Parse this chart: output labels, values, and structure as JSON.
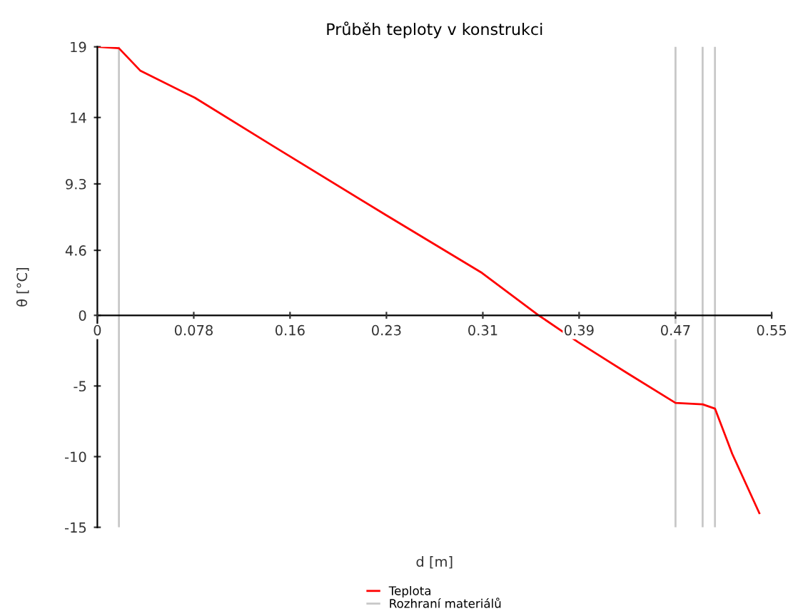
{
  "chart_data": {
    "type": "line",
    "title": "Průběh teploty v konstrukci",
    "xlabel": "d [m]",
    "ylabel": "θ [°C]",
    "series": [
      {
        "name": "Teplota",
        "color": "#ff0000",
        "x": [
          0,
          0.0175,
          0.035,
          0.079,
          0.144,
          0.234,
          0.312,
          0.358,
          0.39,
          0.43,
          0.469,
          0.491,
          0.501,
          0.515,
          0.537
        ],
        "values": [
          19,
          18.9,
          17.3,
          15.4,
          11.9,
          7.1,
          3.0,
          0,
          -1.9,
          -4.1,
          -6.2,
          -6.3,
          -6.6,
          -9.8,
          -14
        ]
      }
    ],
    "ref_lines": [
      {
        "axis": "x",
        "value": 0.0175,
        "label": "Rozhraní materiálů",
        "color": "#c8c8c8"
      },
      {
        "axis": "x",
        "value": 0.469,
        "color": "#c8c8c8"
      },
      {
        "axis": "x",
        "value": 0.491,
        "color": "#c8c8c8"
      },
      {
        "axis": "x",
        "value": 0.501,
        "color": "#c8c8c8"
      }
    ],
    "xlim": [
      0,
      0.547
    ],
    "xticks": [
      0,
      {
        "value": 0.0782,
        "label": "0.078"
      },
      {
        "value": 0.1563,
        "label": "0.16"
      },
      {
        "value": 0.2345,
        "label": "0.23"
      },
      {
        "value": 0.3127,
        "label": "0.31"
      },
      {
        "value": 0.3908,
        "label": "0.39"
      },
      {
        "value": 0.469,
        "label": "0.47"
      },
      {
        "value": 0.547,
        "label": "0.55"
      }
    ],
    "ylim": [
      -15,
      19
    ],
    "yticks": [
      -15,
      -10,
      -5,
      0,
      4.6,
      9.3,
      14,
      19
    ],
    "grid": false,
    "legend": "bottom",
    "marker": "none",
    "line_style": "solid"
  }
}
